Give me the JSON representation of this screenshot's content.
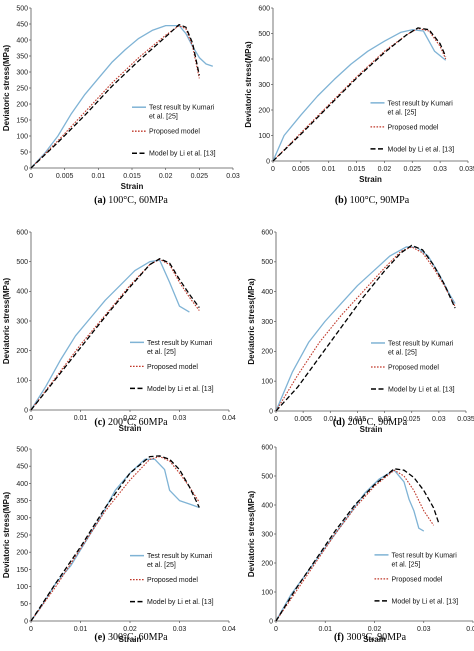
{
  "chart_data": [
    {
      "type": "line",
      "caption_letter": "(a)",
      "caption_text": "100°C, 60MPa",
      "xlabel": "Strain",
      "ylabel": "Deviatoric stress(MPa)",
      "xlim": [
        0,
        0.03
      ],
      "ylim": [
        0,
        500
      ],
      "xticks": [
        "0",
        "0.005",
        "0.01",
        "0.015",
        "0.02",
        "0.025",
        "0.03"
      ],
      "yticks": [
        "0",
        "50",
        "100",
        "150",
        "200",
        "250",
        "300",
        "350",
        "400",
        "450",
        "500"
      ],
      "legend": [
        "Test result by Kumari et al. [25]",
        "Proposed model",
        "Model by Li et al. [13]"
      ],
      "series": [
        {
          "name": "Test result by Kumari et al. [25]",
          "x": [
            0,
            0.002,
            0.004,
            0.006,
            0.008,
            0.01,
            0.012,
            0.014,
            0.016,
            0.018,
            0.02,
            0.022,
            0.023,
            0.024,
            0.025,
            0.026,
            0.027
          ],
          "y": [
            0,
            45,
            100,
            170,
            230,
            280,
            330,
            370,
            405,
            430,
            445,
            445,
            420,
            380,
            345,
            325,
            318
          ]
        },
        {
          "name": "Proposed model",
          "x": [
            0,
            0.004,
            0.008,
            0.012,
            0.016,
            0.02,
            0.022,
            0.023,
            0.024,
            0.025
          ],
          "y": [
            0,
            85,
            175,
            265,
            345,
            415,
            445,
            435,
            380,
            280
          ]
        },
        {
          "name": "Model by Li et al. [13]",
          "x": [
            0,
            0.004,
            0.008,
            0.012,
            0.016,
            0.02,
            0.022,
            0.023,
            0.024,
            0.025
          ],
          "y": [
            0,
            80,
            165,
            255,
            335,
            410,
            448,
            440,
            390,
            290
          ]
        }
      ]
    },
    {
      "type": "line",
      "caption_letter": "(b)",
      "caption_text": "100°C, 90MPa",
      "xlabel": "Strain",
      "ylabel": "Deviatoric stress(MPa)",
      "xlim": [
        0,
        0.035
      ],
      "ylim": [
        0,
        600
      ],
      "xticks": [
        "0",
        "0.005",
        "0.01",
        "0.015",
        "0.02",
        "0.025",
        "0.03",
        "0.035"
      ],
      "yticks": [
        "0",
        "100",
        "200",
        "300",
        "400",
        "500",
        "600"
      ],
      "legend": [
        "Test result by Kumari et al. [25]",
        "Proposed model",
        "Model by Li et al. [13]"
      ],
      "series": [
        {
          "name": "Test result by Kumari et al. [25]",
          "x": [
            0,
            0.002,
            0.005,
            0.008,
            0.011,
            0.014,
            0.017,
            0.02,
            0.023,
            0.025,
            0.027,
            0.029,
            0.031
          ],
          "y": [
            0,
            100,
            180,
            255,
            320,
            380,
            430,
            470,
            505,
            515,
            510,
            430,
            395
          ]
        },
        {
          "name": "Proposed model",
          "x": [
            0,
            0.005,
            0.01,
            0.015,
            0.02,
            0.024,
            0.026,
            0.028,
            0.03,
            0.031
          ],
          "y": [
            0,
            110,
            220,
            330,
            430,
            495,
            520,
            510,
            450,
            400
          ]
        },
        {
          "name": "Model by Li et al. [13]",
          "x": [
            0,
            0.005,
            0.01,
            0.015,
            0.02,
            0.024,
            0.026,
            0.028,
            0.03,
            0.031
          ],
          "y": [
            0,
            105,
            215,
            325,
            425,
            495,
            522,
            515,
            460,
            410
          ]
        }
      ]
    },
    {
      "type": "line",
      "caption_letter": "(c)",
      "caption_text": "200°C, 60MPa",
      "xlabel": "Strain",
      "ylabel": "Deviatoric stress(MPa)",
      "xlim": [
        0,
        0.04
      ],
      "ylim": [
        0,
        600
      ],
      "xticks": [
        "0",
        "0.01",
        "0.02",
        "0.03",
        "0.04"
      ],
      "yticks": [
        "0",
        "100",
        "200",
        "300",
        "400",
        "500",
        "600"
      ],
      "legend": [
        "Test result by Kumari et al. [25]",
        "Proposed model",
        "Model by Li et al. [13]"
      ],
      "series": [
        {
          "name": "Test result by Kumari et al. [25]",
          "x": [
            0,
            0.003,
            0.006,
            0.009,
            0.012,
            0.015,
            0.018,
            0.021,
            0.024,
            0.026,
            0.028,
            0.03,
            0.032
          ],
          "y": [
            0,
            80,
            170,
            250,
            310,
            370,
            420,
            470,
            500,
            505,
            430,
            350,
            330
          ]
        },
        {
          "name": "Proposed model",
          "x": [
            0,
            0.005,
            0.01,
            0.015,
            0.02,
            0.024,
            0.026,
            0.028,
            0.03,
            0.032,
            0.034
          ],
          "y": [
            0,
            110,
            220,
            320,
            420,
            490,
            508,
            490,
            430,
            380,
            335
          ]
        },
        {
          "name": "Model by Li et al. [13]",
          "x": [
            0,
            0.005,
            0.01,
            0.015,
            0.02,
            0.024,
            0.026,
            0.028,
            0.03,
            0.032,
            0.034
          ],
          "y": [
            0,
            105,
            210,
            315,
            415,
            490,
            510,
            495,
            440,
            390,
            345
          ]
        }
      ]
    },
    {
      "type": "line",
      "caption_letter": "(d)",
      "caption_text": "200°C, 90MPa",
      "xlabel": "Strain",
      "ylabel": "Deviatoric stress(MPa)",
      "xlim": [
        0,
        0.035
      ],
      "ylim": [
        0,
        600
      ],
      "xticks": [
        "0",
        "0.005",
        "0.01",
        "0.015",
        "0.02",
        "0.025",
        "0.03",
        "0.035"
      ],
      "yticks": [
        "0",
        "100",
        "200",
        "300",
        "400",
        "500",
        "600"
      ],
      "legend": [
        "Test result by Kumari et al. [25]",
        "Proposed model",
        "Model by Li et al. [13]"
      ],
      "series": [
        {
          "name": "Test result by Kumari et al. [25]",
          "x": [
            0,
            0.003,
            0.006,
            0.009,
            0.012,
            0.015,
            0.018,
            0.021,
            0.024,
            0.026,
            0.028,
            0.03,
            0.032,
            0.033
          ],
          "y": [
            0,
            130,
            230,
            300,
            360,
            420,
            470,
            520,
            550,
            548,
            520,
            460,
            390,
            360
          ]
        },
        {
          "name": "Proposed model",
          "x": [
            0,
            0.004,
            0.008,
            0.012,
            0.016,
            0.02,
            0.023,
            0.025,
            0.027,
            0.029,
            0.031,
            0.033
          ],
          "y": [
            0,
            120,
            230,
            320,
            400,
            480,
            535,
            550,
            530,
            480,
            420,
            350
          ]
        },
        {
          "name": "Model by Li et al. [13]",
          "x": [
            0,
            0.004,
            0.008,
            0.012,
            0.016,
            0.02,
            0.023,
            0.025,
            0.027,
            0.029,
            0.031,
            0.033
          ],
          "y": [
            0,
            80,
            180,
            280,
            380,
            470,
            530,
            555,
            540,
            490,
            425,
            345
          ]
        }
      ]
    },
    {
      "type": "line",
      "caption_letter": "(e)",
      "caption_text": "300°C, 60MPa",
      "xlabel": "Strain",
      "ylabel": "Deviatoric stress(MPa)",
      "xlim": [
        0,
        0.04
      ],
      "ylim": [
        0,
        500
      ],
      "xticks": [
        "0",
        "0.01",
        "0.02",
        "0.03",
        "0.04"
      ],
      "yticks": [
        "0",
        "50",
        "100",
        "150",
        "200",
        "250",
        "300",
        "350",
        "400",
        "450",
        "500"
      ],
      "legend": [
        "Test result by Kumari et al. [25]",
        "Proposed model",
        "Model by Li et al. [13]"
      ],
      "series": [
        {
          "name": "Test result by Kumari et al. [25]",
          "x": [
            0,
            0.002,
            0.005,
            0.008,
            0.011,
            0.014,
            0.017,
            0.02,
            0.023,
            0.025,
            0.027,
            0.028,
            0.03,
            0.032,
            0.034
          ],
          "y": [
            0,
            40,
            110,
            160,
            230,
            300,
            380,
            430,
            470,
            470,
            440,
            380,
            350,
            340,
            330
          ]
        },
        {
          "name": "Proposed model",
          "x": [
            0,
            0.005,
            0.01,
            0.015,
            0.02,
            0.024,
            0.026,
            0.028,
            0.03,
            0.032,
            0.034
          ],
          "y": [
            0,
            100,
            210,
            320,
            410,
            470,
            478,
            465,
            430,
            390,
            345
          ]
        },
        {
          "name": "Model by Li et al. [13]",
          "x": [
            0,
            0.005,
            0.01,
            0.015,
            0.02,
            0.024,
            0.026,
            0.028,
            0.03,
            0.032,
            0.034
          ],
          "y": [
            0,
            110,
            215,
            330,
            430,
            478,
            480,
            470,
            440,
            390,
            330
          ]
        }
      ]
    },
    {
      "type": "line",
      "caption_letter": "(f)",
      "caption_text": "300°C, 90MPa",
      "xlabel": "Strain",
      "ylabel": "Deviatoric stress(MPa)",
      "xlim": [
        0,
        0.04
      ],
      "ylim": [
        0,
        600
      ],
      "xticks": [
        "0",
        "0.01",
        "0.02",
        "0.03",
        "0.04"
      ],
      "yticks": [
        "0",
        "100",
        "200",
        "300",
        "400",
        "500",
        "600"
      ],
      "legend": [
        "Test result by Kumari et al. [25]",
        "Proposed model",
        "Model by Li et al. [13]"
      ],
      "series": [
        {
          "name": "Test result by Kumari et al. [25]",
          "x": [
            0,
            0.003,
            0.006,
            0.009,
            0.012,
            0.015,
            0.018,
            0.021,
            0.024,
            0.026,
            0.027,
            0.028,
            0.029,
            0.03
          ],
          "y": [
            0,
            90,
            160,
            230,
            300,
            370,
            440,
            490,
            520,
            480,
            420,
            380,
            320,
            310
          ]
        },
        {
          "name": "Proposed model",
          "x": [
            0,
            0.004,
            0.008,
            0.012,
            0.016,
            0.02,
            0.024,
            0.026,
            0.028,
            0.03,
            0.032
          ],
          "y": [
            0,
            100,
            200,
            300,
            390,
            465,
            520,
            500,
            450,
            380,
            330
          ]
        },
        {
          "name": "Model by Li et al. [13]",
          "x": [
            0,
            0.004,
            0.008,
            0.012,
            0.016,
            0.02,
            0.024,
            0.026,
            0.028,
            0.03,
            0.032,
            0.033
          ],
          "y": [
            0,
            110,
            210,
            310,
            400,
            470,
            525,
            520,
            495,
            450,
            390,
            340
          ]
        }
      ]
    }
  ],
  "colors": {
    "test": "#7fb3d5",
    "proposed": "#c0392b",
    "li": "#000000",
    "axis": "#555555"
  }
}
